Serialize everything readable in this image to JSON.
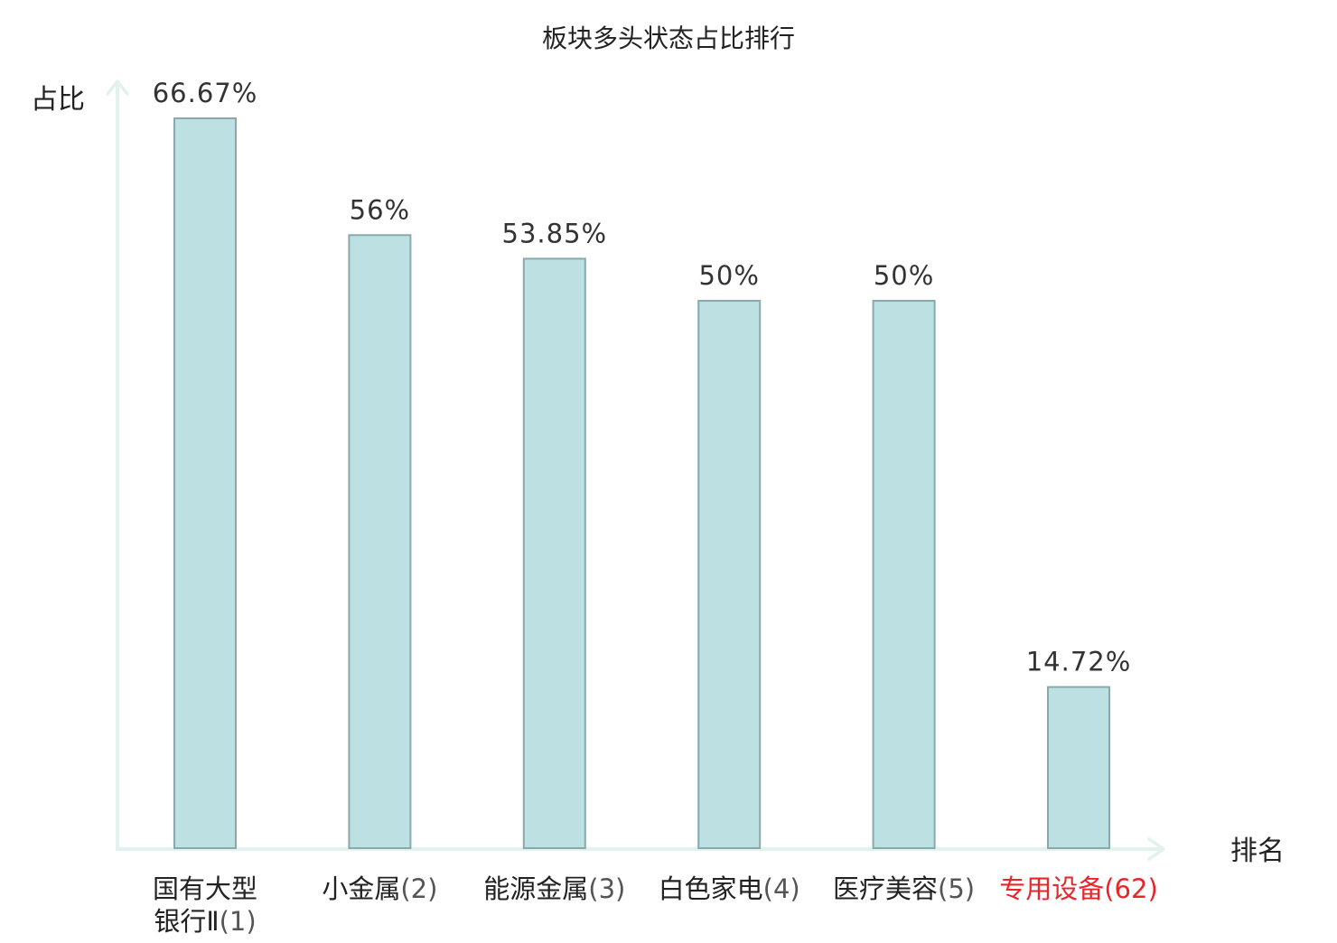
{
  "chart_data": {
    "type": "bar",
    "title": "板块多头状态占比排行",
    "ylabel": "占比",
    "xlabel": "排名",
    "ylim": [
      0,
      66.67
    ],
    "grid": false,
    "legend": "none",
    "categories": [
      {
        "name_lines": [
          "国有大型",
          "银行Ⅱ"
        ],
        "rank": "(1)",
        "value": 66.67,
        "value_label": "66.67%",
        "highlight": false
      },
      {
        "name_lines": [
          "小金属"
        ],
        "rank": "(2)",
        "value": 56,
        "value_label": "56%",
        "highlight": false
      },
      {
        "name_lines": [
          "能源金属"
        ],
        "rank": "(3)",
        "value": 53.85,
        "value_label": "53.85%",
        "highlight": false
      },
      {
        "name_lines": [
          "白色家电"
        ],
        "rank": "(4)",
        "value": 50,
        "value_label": "50%",
        "highlight": false
      },
      {
        "name_lines": [
          "医疗美容"
        ],
        "rank": "(5)",
        "value": 50,
        "value_label": "50%",
        "highlight": false
      },
      {
        "name_lines": [
          "专用设备"
        ],
        "rank": "(62)",
        "value": 14.72,
        "value_label": "14.72%",
        "highlight": true
      }
    ]
  },
  "colors": {
    "bar_fill": "#bde1e3",
    "bar_stroke": "#8aa9aa",
    "axis": "#e1f2ef",
    "text": "#222222",
    "value_text": "#333333",
    "rank_text": "#555555",
    "highlight_text": "#e8262a"
  }
}
